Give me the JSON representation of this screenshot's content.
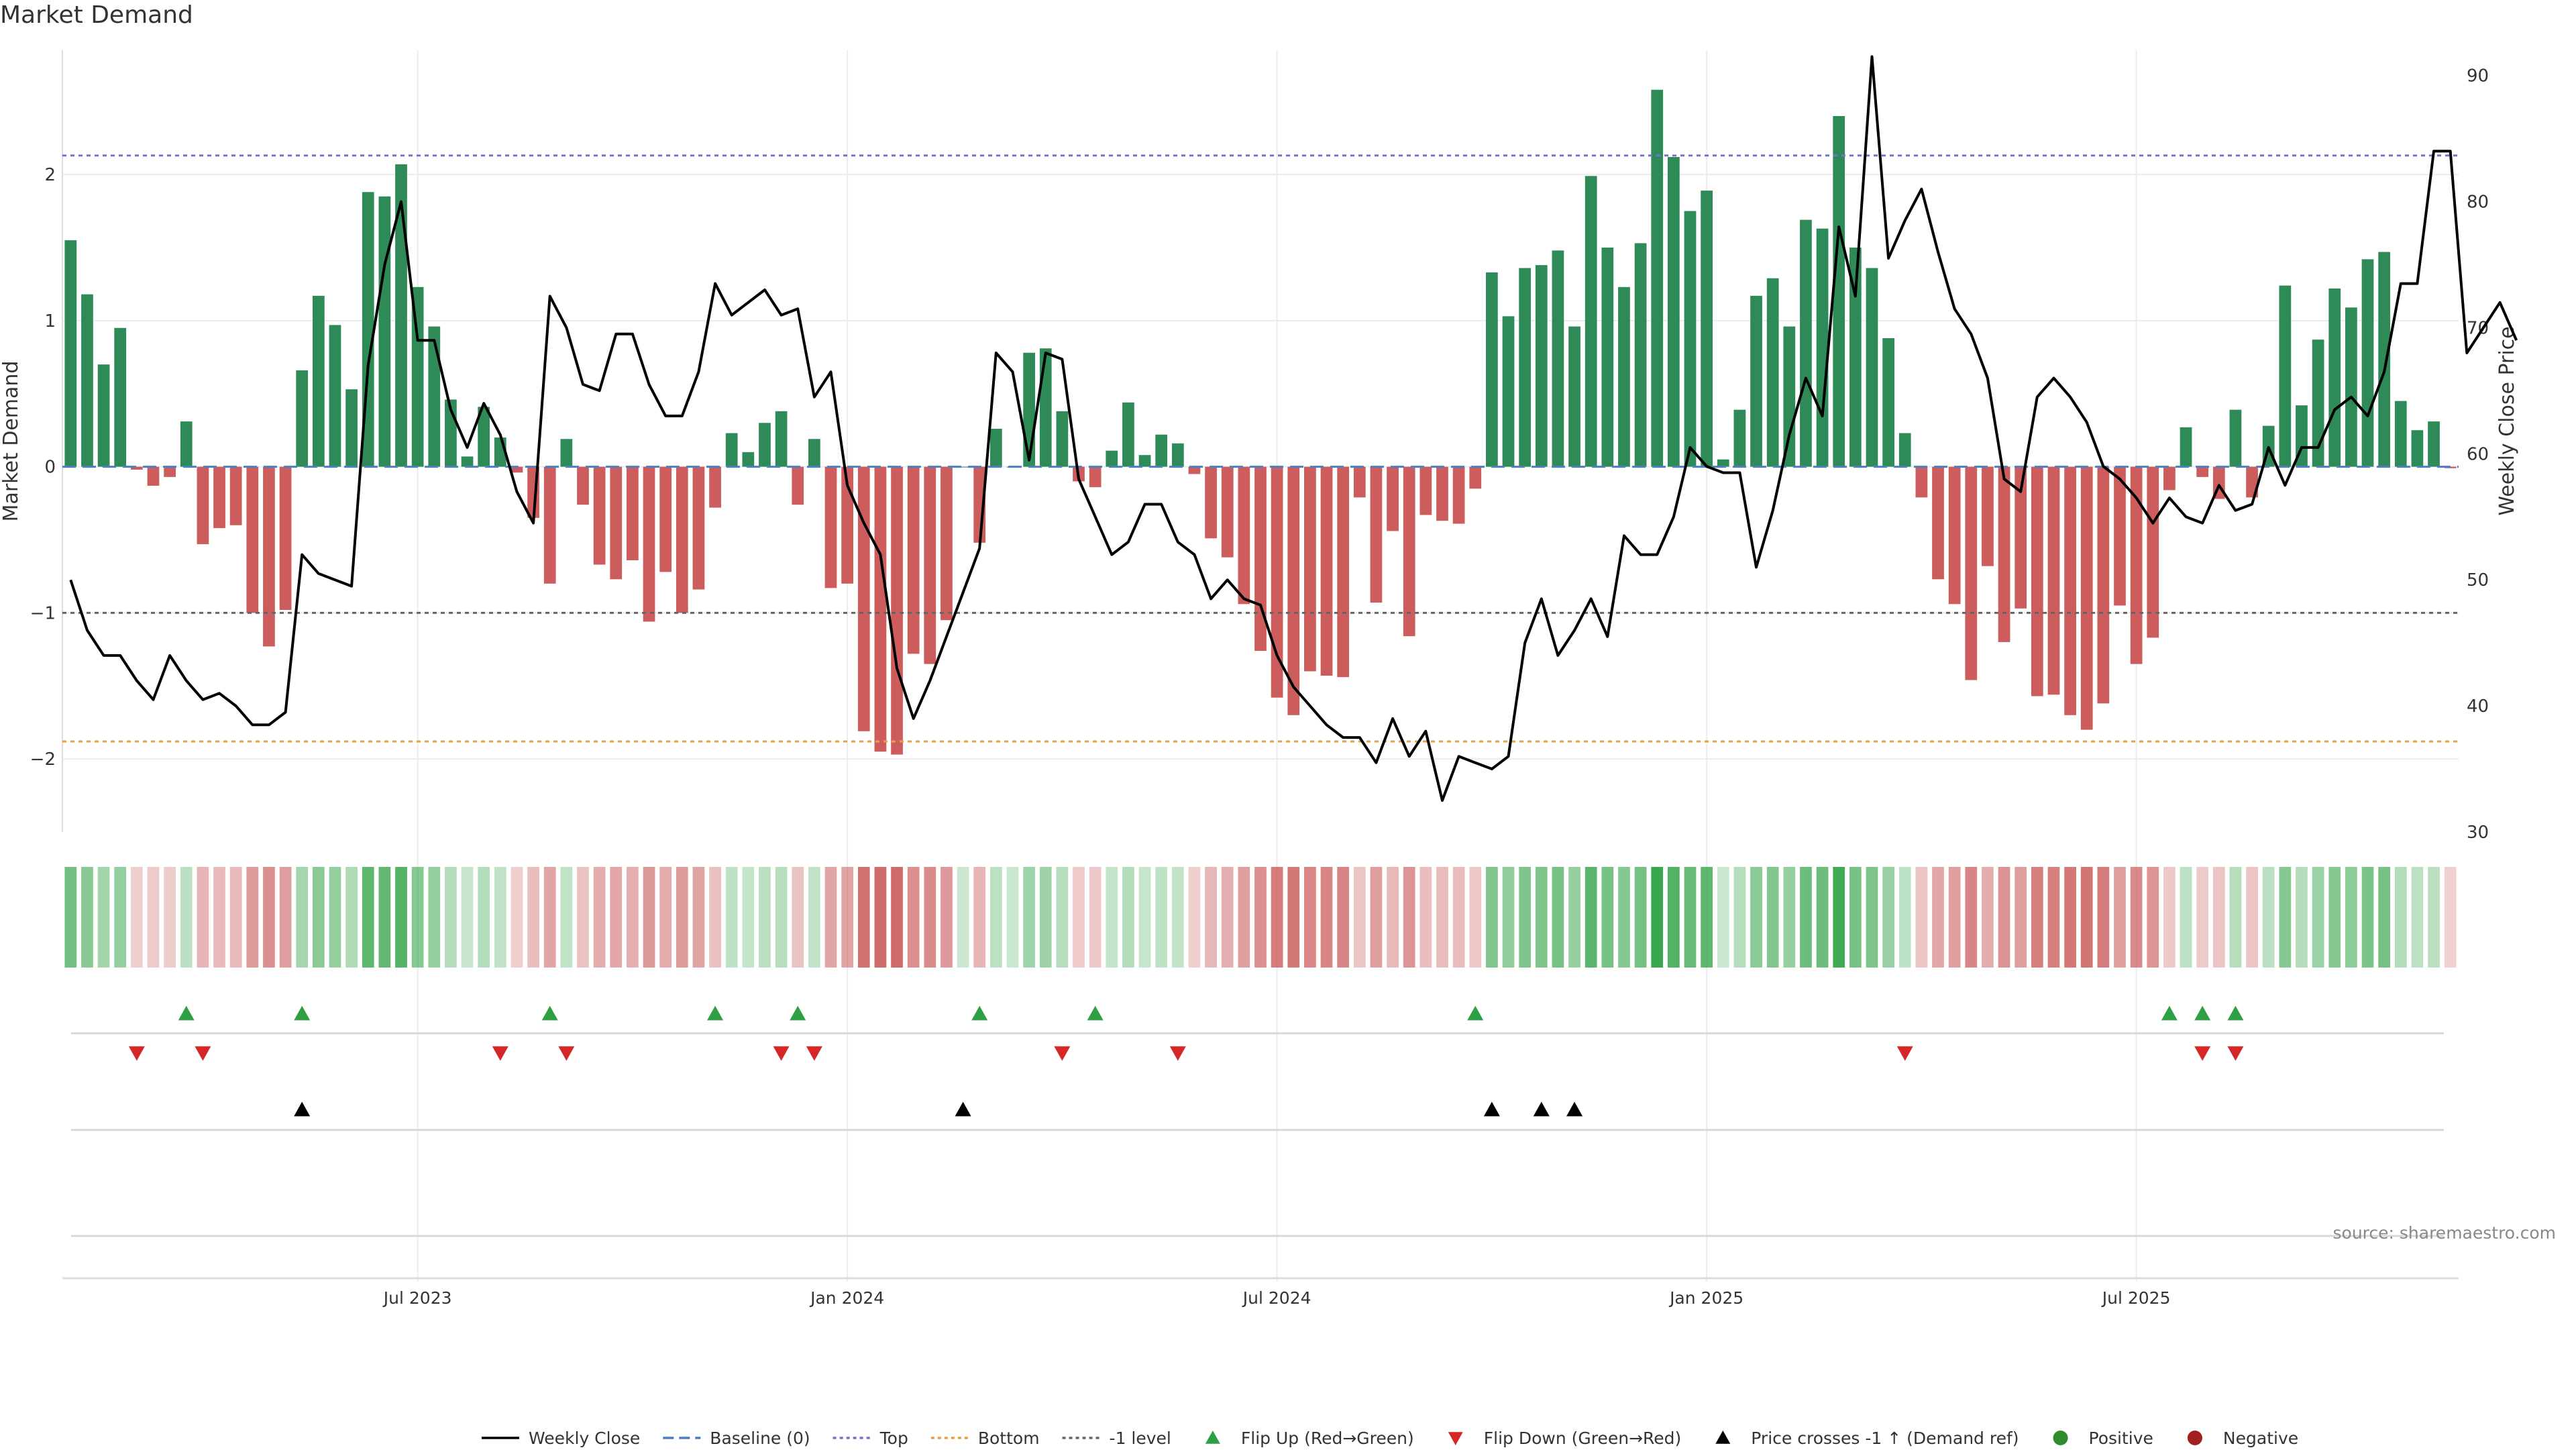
{
  "chart_data": {
    "type": "bar",
    "title": "Market Demand",
    "ylabel": "Market Demand",
    "y2label": "Weekly Close Price",
    "ylim": [
      -2.5,
      2.85
    ],
    "y2lim": [
      30,
      92
    ],
    "yticks": [
      -2,
      -1,
      0,
      1,
      2
    ],
    "y2ticks": [
      30,
      40,
      50,
      60,
      70,
      80,
      90
    ],
    "xticks": [
      {
        "label": "Jul 2023",
        "index": 21
      },
      {
        "label": "Jan 2024",
        "index": 47
      },
      {
        "label": "Jul 2024",
        "index": 73
      },
      {
        "label": "Jan 2025",
        "index": 99
      },
      {
        "label": "Jul 2025",
        "index": 125
      }
    ],
    "reference_lines": [
      {
        "name": "Baseline (0)",
        "value": 0,
        "color": "#4a7fc1"
      },
      {
        "name": "Top",
        "value": 2.13,
        "color": "#7b6fd0"
      },
      {
        "name": "Bottom",
        "value": -1.88,
        "color": "#e8a040"
      },
      {
        "name": "-1 level",
        "value": -1.0,
        "color": "#666666"
      }
    ],
    "series": [
      {
        "name": "Market Demand",
        "type": "bar",
        "values": [
          1.55,
          1.18,
          0.7,
          0.95,
          -0.02,
          -0.13,
          -0.07,
          0.31,
          -0.53,
          -0.42,
          -0.4,
          -1.0,
          -1.23,
          -0.98,
          0.66,
          1.17,
          0.97,
          0.53,
          1.88,
          1.85,
          2.07,
          1.23,
          0.96,
          0.46,
          0.07,
          0.41,
          0.2,
          -0.04,
          -0.35,
          -0.8,
          0.19,
          -0.26,
          -0.67,
          -0.77,
          -0.64,
          -1.06,
          -0.72,
          -1.0,
          -0.84,
          -0.28,
          0.23,
          0.1,
          0.3,
          0.38,
          -0.26,
          0.19,
          -0.83,
          -0.8,
          -1.81,
          -1.95,
          -1.97,
          -1.28,
          -1.35,
          -1.05,
          0.0,
          -0.52,
          0.26,
          0.0,
          0.78,
          0.81,
          0.38,
          -0.1,
          -0.14,
          0.11,
          0.44,
          0.08,
          0.22,
          0.16,
          -0.05,
          -0.49,
          -0.62,
          -0.94,
          -1.26,
          -1.58,
          -1.7,
          -1.4,
          -1.43,
          -1.44,
          -0.21,
          -0.93,
          -0.44,
          -1.16,
          -0.33,
          -0.37,
          -0.39,
          -0.15,
          1.33,
          1.03,
          1.36,
          1.38,
          1.48,
          0.96,
          1.99,
          1.5,
          1.23,
          1.53,
          2.58,
          2.12,
          1.75,
          1.89,
          0.05,
          0.39,
          1.17,
          1.29,
          0.96,
          1.69,
          1.63,
          2.4,
          1.5,
          1.36,
          0.88,
          0.23,
          -0.21,
          -0.77,
          -0.94,
          -1.46,
          -0.68,
          -1.2,
          -0.97,
          -1.57,
          -1.56,
          -1.7,
          -1.8,
          -1.62,
          -0.95,
          -1.35,
          -1.17,
          -0.16,
          0.27,
          -0.07,
          -0.22,
          0.39,
          -0.21,
          0.28,
          1.24,
          0.42,
          0.87,
          1.22,
          1.09,
          1.42,
          1.47,
          0.45,
          0.25,
          0.31,
          -0.01
        ]
      },
      {
        "name": "Weekly Close",
        "type": "line",
        "values": [
          50.0,
          46.0,
          44.0,
          44.0,
          42.0,
          40.5,
          44.0,
          42.0,
          40.5,
          41.0,
          40.0,
          38.5,
          38.5,
          39.5,
          52.0,
          50.5,
          50.0,
          49.5,
          67.0,
          75.0,
          80.0,
          69.0,
          69.0,
          63.5,
          60.5,
          64.0,
          61.5,
          57.0,
          54.5,
          72.5,
          70.0,
          65.5,
          65.0,
          69.5,
          69.5,
          65.5,
          63.0,
          63.0,
          66.5,
          73.5,
          71.0,
          72.0,
          73.0,
          71.0,
          71.5,
          64.5,
          66.5,
          57.5,
          54.5,
          52.0,
          43.0,
          39.0,
          42.0,
          45.5,
          49.0,
          52.5,
          68.0,
          66.5,
          59.5,
          68.0,
          67.5,
          58.0,
          55.0,
          52.0,
          53.0,
          56.0,
          56.0,
          53.0,
          52.0,
          48.5,
          50.0,
          48.5,
          48.0,
          44.0,
          41.5,
          40.0,
          38.5,
          37.5,
          37.5,
          35.5,
          39.0,
          36.0,
          38.0,
          32.5,
          36.0,
          35.5,
          35.0,
          36.0,
          45.0,
          48.5,
          44.0,
          46.0,
          48.5,
          45.5,
          53.5,
          52.0,
          52.0,
          55.0,
          60.5,
          59.0,
          58.5,
          58.5,
          51.0,
          55.5,
          61.5,
          66.0,
          63.0,
          78.0,
          72.5,
          91.5,
          75.5,
          78.5,
          81.0,
          76.0,
          71.5,
          69.5,
          66.0,
          58.0,
          57.0,
          64.5,
          66.0,
          64.5,
          62.5,
          59.0,
          58.0,
          56.5,
          54.5,
          56.5,
          55.0,
          54.5,
          57.5,
          55.5,
          56.0,
          60.5,
          57.5,
          60.5,
          60.5,
          63.5,
          64.5,
          63.0,
          66.5,
          73.5,
          73.5,
          84.0,
          84.0,
          68.0,
          70.0,
          72.0,
          69.0
        ]
      }
    ],
    "signal_rows": [
      {
        "name": "Flip Up (Red→Green)",
        "indices": [
          7,
          14,
          29,
          39,
          44,
          55,
          62,
          85,
          127,
          129,
          131
        ]
      },
      {
        "name": "Flip Down (Green→Red)",
        "indices": [
          4,
          8,
          26,
          30,
          43,
          45,
          60,
          67,
          111,
          129,
          131
        ]
      },
      {
        "name": "Price crosses -1 ↑ (Demand ref)",
        "indices": [
          14,
          54,
          86,
          89,
          91
        ]
      }
    ],
    "legend": [
      {
        "label": "Weekly Close",
        "symbol": "line",
        "color": "#000000"
      },
      {
        "label": "Baseline (0)",
        "symbol": "dashed",
        "color": "#4a7fc1"
      },
      {
        "label": "Top",
        "symbol": "dotted",
        "color": "#7b6fd0"
      },
      {
        "label": "Bottom",
        "symbol": "dotted",
        "color": "#e8a040"
      },
      {
        "label": "-1 level",
        "symbol": "dotted",
        "color": "#666666"
      },
      {
        "label": "Flip Up (Red→Green)",
        "symbol": "tri-up",
        "color": "#2ea043"
      },
      {
        "label": "Flip Down (Green→Red)",
        "symbol": "tri-down",
        "color": "#d62728"
      },
      {
        "label": "Price crosses -1 ↑ (Demand ref)",
        "symbol": "tri-up",
        "color": "#000000"
      },
      {
        "label": "Positive",
        "symbol": "dot",
        "color": "#2e8b2e"
      },
      {
        "label": "Negative",
        "symbol": "dot",
        "color": "#a31f1f"
      }
    ],
    "legend_position": "bottom-center",
    "colors": {
      "positive": "#2e8b57",
      "negative": "#cd5c5c"
    }
  },
  "source": "source: sharemaestro.com"
}
